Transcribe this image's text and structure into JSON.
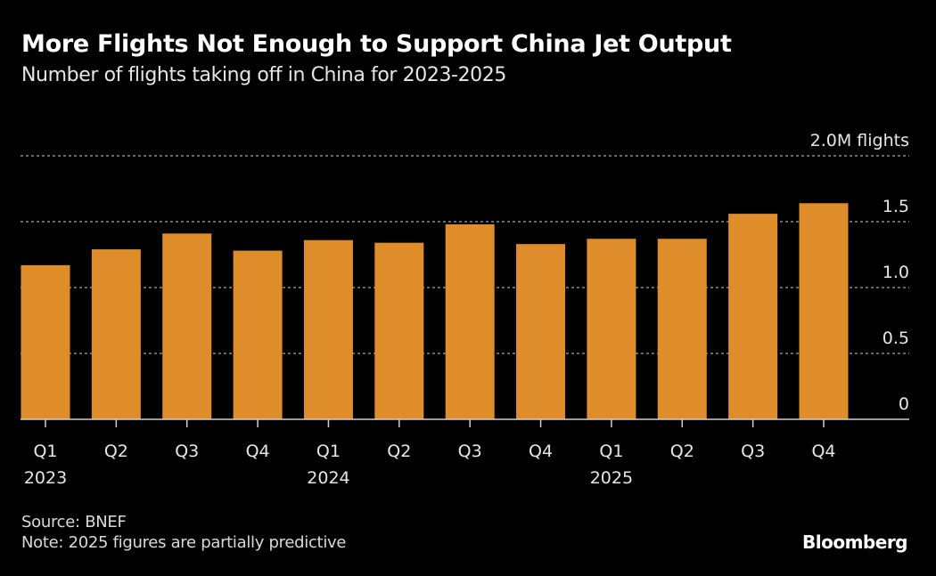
{
  "header": {
    "title": "More Flights Not Enough to Support China Jet Output",
    "subtitle": "Number of flights taking off in China for 2023-2025"
  },
  "footer": {
    "source": "Source: BNEF",
    "note": "Note: 2025 figures are partially predictive",
    "brand": "Bloomberg"
  },
  "colors": {
    "background": "#000000",
    "bar": "#DF8D2A",
    "grid": "#8a8a8a",
    "axis": "#cfcfcf",
    "text": "#e6e6e6"
  },
  "chart_data": {
    "type": "bar",
    "title": "More Flights Not Enough to Support China Jet Output",
    "subtitle": "Number of flights taking off in China for 2023-2025",
    "xlabel": "",
    "ylabel": "M flights",
    "ylim": [
      0,
      2.0
    ],
    "yticks": [
      0,
      0.5,
      1.0,
      1.5,
      2.0
    ],
    "ytick_labels": [
      "0",
      "0.5",
      "1.0",
      "1.5",
      "2.0M flights"
    ],
    "grid": true,
    "y_axis_side": "right",
    "categories": [
      "Q1 2023",
      "Q2 2023",
      "Q3 2023",
      "Q4 2023",
      "Q1 2024",
      "Q2 2024",
      "Q3 2024",
      "Q4 2024",
      "Q1 2025",
      "Q2 2025",
      "Q3 2025",
      "Q4 2025"
    ],
    "xtick_labels": [
      "Q1",
      "Q2",
      "Q3",
      "Q4",
      "Q1",
      "Q2",
      "Q3",
      "Q4",
      "Q1",
      "Q2",
      "Q3",
      "Q4"
    ],
    "year_labels": [
      {
        "index": 0,
        "label": "2023"
      },
      {
        "index": 4,
        "label": "2024"
      },
      {
        "index": 8,
        "label": "2025"
      }
    ],
    "series": [
      {
        "name": "Flights (millions)",
        "values": [
          1.17,
          1.29,
          1.41,
          1.28,
          1.36,
          1.34,
          1.48,
          1.33,
          1.37,
          1.37,
          1.56,
          1.64
        ]
      }
    ]
  }
}
